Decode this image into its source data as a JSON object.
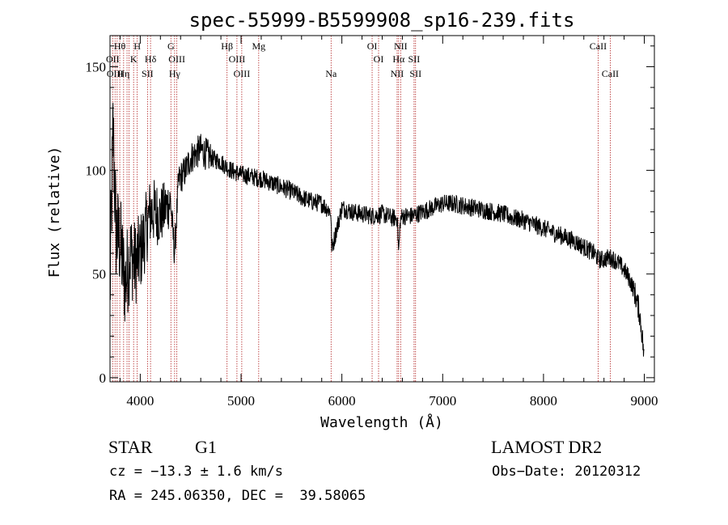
{
  "chart_data": {
    "type": "line",
    "title": "spec-55999-B5599908_sp16-239.fits",
    "xlabel": "Wavelength (Å)",
    "ylabel": "Flux (relative)",
    "xlim": [
      3700,
      9100
    ],
    "ylim": [
      -2,
      165
    ],
    "x_ticks": [
      4000,
      5000,
      6000,
      7000,
      8000,
      9000
    ],
    "y_ticks": [
      0,
      50,
      100,
      150
    ],
    "line_color": "#000000",
    "marker_color": "#b22222",
    "anchors": {
      "x": [
        3700,
        3730,
        3760,
        3800,
        3850,
        3900,
        3950,
        4000,
        4050,
        4100,
        4150,
        4200,
        4250,
        4300,
        4340,
        4380,
        4450,
        4500,
        4550,
        4600,
        4650,
        4700,
        4800,
        4900,
        5000,
        5100,
        5200,
        5300,
        5400,
        5500,
        5600,
        5700,
        5800,
        5890,
        5900,
        6000,
        6100,
        6200,
        6300,
        6400,
        6500,
        6550,
        6563,
        6580,
        6600,
        6700,
        6800,
        6900,
        7000,
        7100,
        7200,
        7300,
        7400,
        7500,
        7600,
        7700,
        7800,
        7900,
        8000,
        8100,
        8200,
        8300,
        8400,
        8500,
        8550,
        8600,
        8650,
        8700,
        8750,
        8800,
        8850,
        8900,
        8950,
        8980,
        9000
      ],
      "y": [
        40,
        120,
        70,
        65,
        45,
        60,
        55,
        60,
        70,
        80,
        80,
        78,
        82,
        85,
        60,
        95,
        100,
        106,
        108,
        110,
        108,
        106,
        104,
        100,
        98,
        97,
        96,
        94,
        92,
        90,
        87,
        85,
        84,
        80,
        62,
        82,
        80,
        79,
        78,
        79,
        77,
        77,
        60,
        76,
        78,
        78,
        80,
        82,
        84,
        84,
        83,
        82,
        81,
        80,
        79,
        77,
        76,
        74,
        72,
        70,
        68,
        66,
        63,
        60,
        57,
        57,
        58,
        57,
        55,
        52,
        48,
        42,
        32,
        20,
        8
      ]
    },
    "noise_amplitude": 4.5,
    "markers": {
      "wavelengths": [
        3727,
        3750,
        3771,
        3797,
        3835,
        3869,
        3889,
        3934,
        3970,
        4072,
        4102,
        4304,
        4341,
        4363,
        4861,
        4959,
        5007,
        5175,
        5893,
        6300,
        6364,
        6548,
        6563,
        6583,
        6716,
        6731,
        8542,
        8662
      ],
      "labels": [
        {
          "text": "Hθ",
          "x": 3797,
          "row": 0
        },
        {
          "text": "H",
          "x": 3970,
          "row": 0
        },
        {
          "text": "G",
          "x": 4304,
          "row": 0
        },
        {
          "text": "Hβ",
          "x": 4861,
          "row": 0
        },
        {
          "text": "Mg",
          "x": 5175,
          "row": 0
        },
        {
          "text": "OI",
          "x": 6300,
          "row": 0
        },
        {
          "text": "NII",
          "x": 6583,
          "row": 0
        },
        {
          "text": "CaII",
          "x": 8542,
          "row": 0
        },
        {
          "text": "OII",
          "x": 3727,
          "row": 1
        },
        {
          "text": "K",
          "x": 3934,
          "row": 1
        },
        {
          "text": "Hδ",
          "x": 4102,
          "row": 1
        },
        {
          "text": "OIII",
          "x": 4363,
          "row": 1
        },
        {
          "text": "OIII",
          "x": 4959,
          "row": 1
        },
        {
          "text": "OI",
          "x": 6364,
          "row": 1
        },
        {
          "text": "Hα",
          "x": 6563,
          "row": 1
        },
        {
          "text": "SII",
          "x": 6716,
          "row": 1
        },
        {
          "text": "OIII",
          "x": 3750,
          "row": 2
        },
        {
          "text": "Hη",
          "x": 3835,
          "row": 2
        },
        {
          "text": "SII",
          "x": 4072,
          "row": 2
        },
        {
          "text": "Hγ",
          "x": 4341,
          "row": 2
        },
        {
          "text": "OIII",
          "x": 5007,
          "row": 2
        },
        {
          "text": "Na",
          "x": 5893,
          "row": 2
        },
        {
          "text": "NII",
          "x": 6548,
          "row": 2
        },
        {
          "text": "SII",
          "x": 6731,
          "row": 2
        },
        {
          "text": "CaII",
          "x": 8662,
          "row": 2
        }
      ]
    }
  },
  "info": {
    "object_type": "STAR",
    "subclass": "G1",
    "survey": "LAMOST DR2",
    "redshift": "cz = −13.3 ± 1.6 km/s",
    "obs_date": "Obs−Date: 20120312",
    "coordinates": "RA = 245.06350, DEC =  39.58065"
  }
}
